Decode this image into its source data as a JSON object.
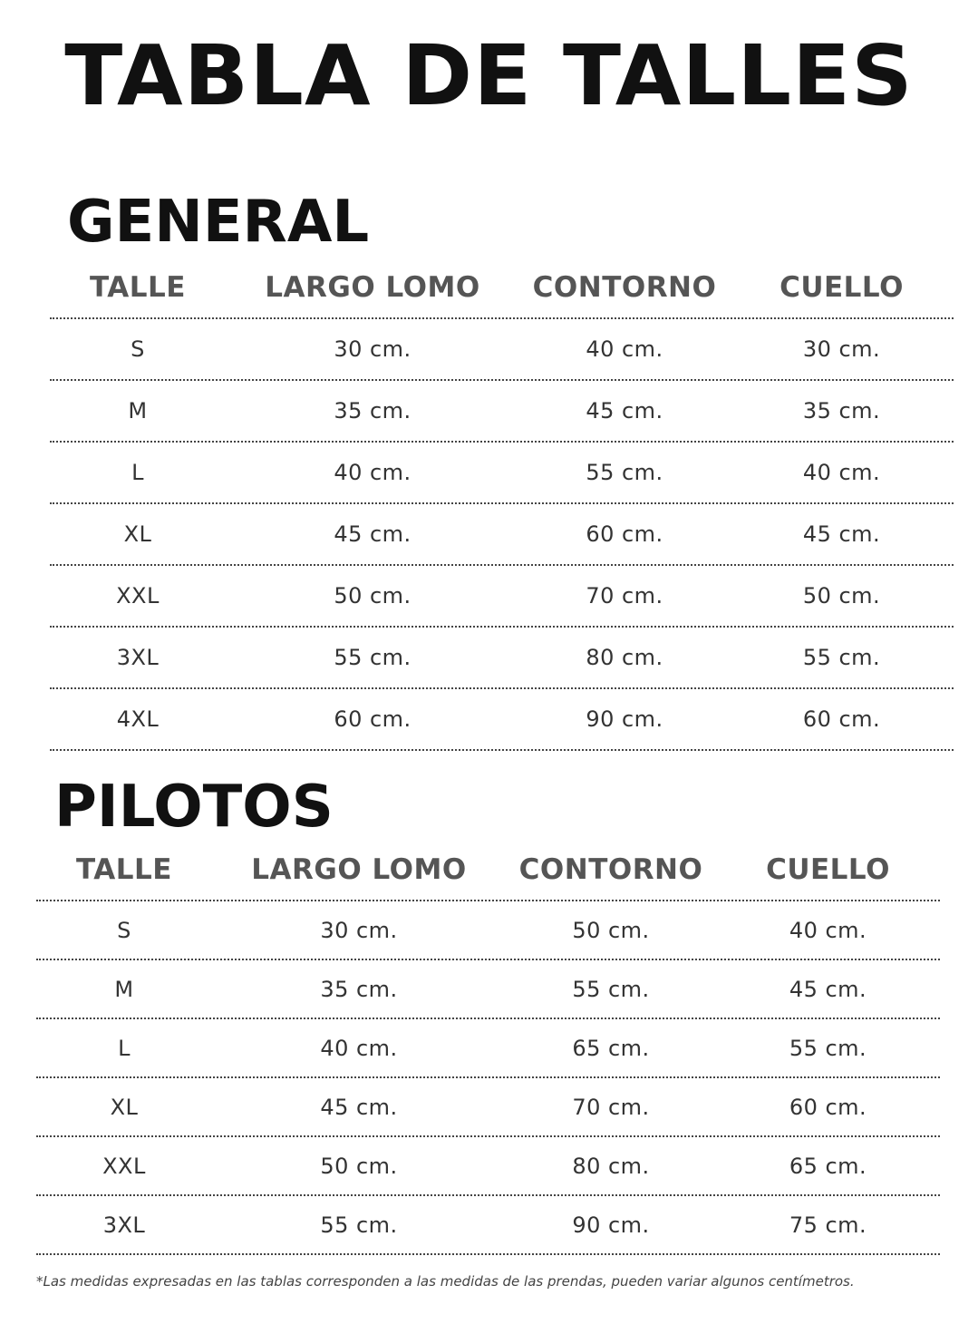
{
  "title": "TABLA DE TALLES",
  "columns": [
    "TALLE",
    "LARGO LOMO",
    "CONTORNO",
    "CUELLO"
  ],
  "general": {
    "heading": "GENERAL",
    "rows": [
      [
        "S",
        "30 cm.",
        "40 cm.",
        "30 cm."
      ],
      [
        "M",
        "35 cm.",
        "45 cm.",
        "35 cm."
      ],
      [
        "L",
        "40 cm.",
        "55 cm.",
        "40 cm."
      ],
      [
        "XL",
        "45 cm.",
        "60 cm.",
        "45 cm."
      ],
      [
        "XXL",
        "50 cm.",
        "70 cm.",
        "50 cm."
      ],
      [
        "3XL",
        "55 cm.",
        "80 cm.",
        "55 cm."
      ],
      [
        "4XL",
        "60 cm.",
        "90 cm.",
        "60 cm."
      ]
    ]
  },
  "pilotos": {
    "heading": "PILOTOS",
    "rows": [
      [
        "S",
        "30 cm.",
        "50 cm.",
        "40 cm."
      ],
      [
        "M",
        "35 cm.",
        "55 cm.",
        "45 cm."
      ],
      [
        "L",
        "40 cm.",
        "65 cm.",
        "55 cm."
      ],
      [
        "XL",
        "45 cm.",
        "70 cm.",
        "60 cm."
      ],
      [
        "XXL",
        "50 cm.",
        "80 cm.",
        "65 cm."
      ],
      [
        "3XL",
        "55 cm.",
        "90 cm.",
        "75 cm."
      ]
    ]
  },
  "footnote": "*Las medidas expresadas en las tablas corresponden a las medidas de las prendas, pueden variar algunos centímetros."
}
